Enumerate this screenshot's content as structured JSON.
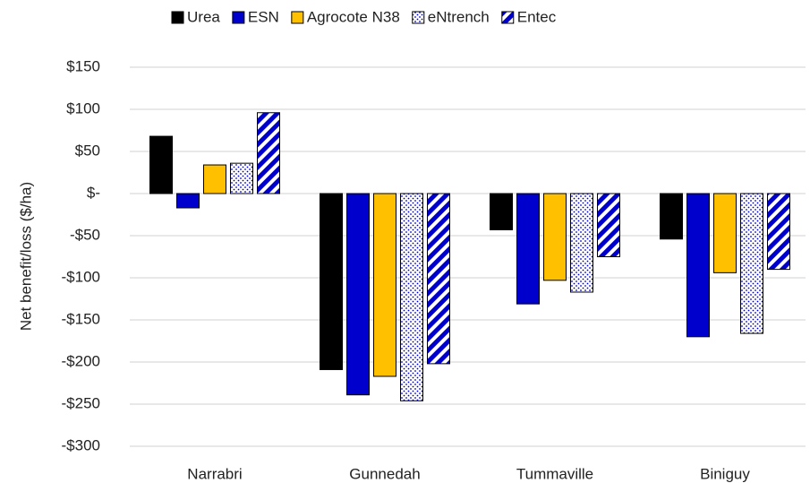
{
  "chart_data": {
    "type": "bar",
    "y_label": "Net benefit/loss ($/ha)",
    "categories": [
      "Narrabri",
      "Gunnedah",
      "Tummaville",
      "Biniguy"
    ],
    "series": [
      {
        "name": "Urea",
        "color": "#000000",
        "values": [
          68,
          -209,
          -43,
          -54
        ]
      },
      {
        "name": "ESN",
        "color": "#0000cc",
        "values": [
          -17,
          -239,
          -131,
          -170
        ]
      },
      {
        "name": "Agrocote N38",
        "color": "#ffc000",
        "values": [
          34,
          -217,
          -103,
          -94
        ]
      },
      {
        "name": "eNtrench",
        "color": "#0000cc",
        "pattern": "dots",
        "values": [
          36,
          -246,
          -117,
          -166
        ]
      },
      {
        "name": "Entec",
        "color": "#0000cc",
        "pattern": "stripes",
        "values": [
          96,
          -202,
          -75,
          -90
        ]
      }
    ],
    "ylim": [
      -300,
      150
    ],
    "yticks": [
      {
        "value": 150,
        "label": "$150"
      },
      {
        "value": 100,
        "label": "$100"
      },
      {
        "value": 50,
        "label": "$50"
      },
      {
        "value": 0,
        "label": "$-"
      },
      {
        "value": -50,
        "label": "-$50"
      },
      {
        "value": -100,
        "label": "-$100"
      },
      {
        "value": -150,
        "label": "-$150"
      },
      {
        "value": -200,
        "label": "-$200"
      },
      {
        "value": -250,
        "label": "-$250"
      },
      {
        "value": -300,
        "label": "-$300"
      }
    ],
    "grid": true,
    "legend": "top"
  }
}
